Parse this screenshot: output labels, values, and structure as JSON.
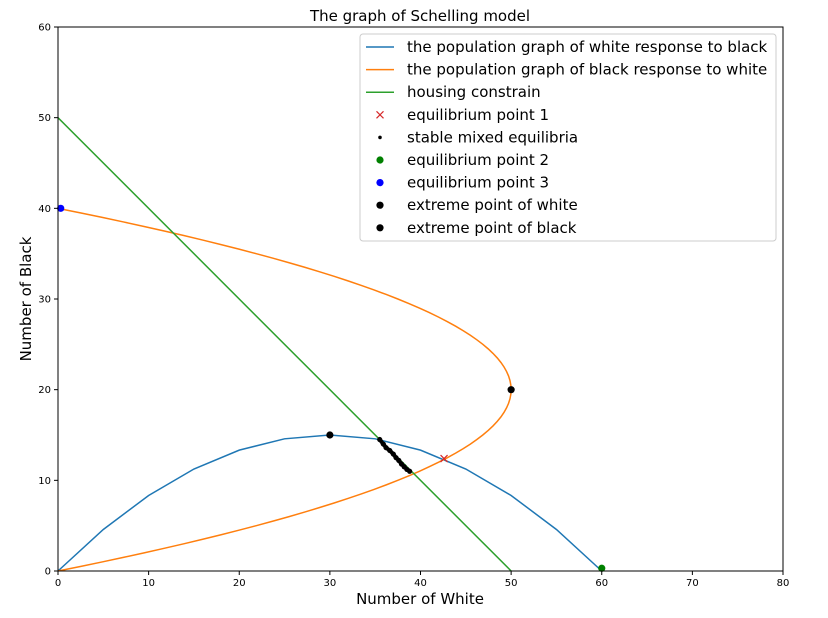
{
  "chart_data": {
    "type": "line",
    "title": "The graph of Schelling model",
    "xlabel": "Number of White",
    "ylabel": "Number of Black",
    "xlim": [
      0,
      80
    ],
    "ylim": [
      0,
      60
    ],
    "xticks": [
      0,
      10,
      20,
      30,
      40,
      50,
      60,
      70,
      80
    ],
    "yticks": [
      0,
      10,
      20,
      30,
      40,
      50,
      60
    ],
    "grid": false,
    "legend_position": "top-right",
    "series": [
      {
        "name": "the population graph of white response to black",
        "kind": "line",
        "color": "#1f77b4",
        "points": [
          [
            0,
            0
          ],
          [
            5,
            4.58
          ],
          [
            10,
            8.33
          ],
          [
            15,
            11.25
          ],
          [
            20,
            13.33
          ],
          [
            25,
            14.58
          ],
          [
            30,
            15
          ],
          [
            35,
            14.58
          ],
          [
            40,
            13.33
          ],
          [
            45,
            11.25
          ],
          [
            50,
            8.33
          ],
          [
            55,
            4.58
          ],
          [
            60,
            0
          ]
        ]
      },
      {
        "name": "the population graph of black response to white",
        "kind": "line",
        "color": "#ff7f0e",
        "points": [
          [
            0,
            0
          ],
          [
            7.5,
            2
          ],
          [
            14,
            4
          ],
          [
            19.5,
            6
          ],
          [
            24,
            8
          ],
          [
            28.8,
            10
          ],
          [
            33.5,
            12
          ],
          [
            37.8,
            14
          ],
          [
            41.5,
            16
          ],
          [
            44.8,
            18
          ],
          [
            48,
            20
          ],
          [
            50,
            22
          ],
          [
            50,
            24
          ],
          [
            50,
            26
          ],
          [
            48,
            28
          ],
          [
            44.8,
            30
          ],
          [
            41.5,
            32
          ],
          [
            37.8,
            34
          ],
          [
            33.5,
            36
          ],
          [
            28.8,
            38
          ],
          [
            0,
            40
          ]
        ]
      },
      {
        "name": "housing constrain",
        "kind": "line",
        "color": "#2ca02c",
        "points": [
          [
            0,
            50
          ],
          [
            50,
            0
          ]
        ]
      },
      {
        "name": "equilibrium point 1",
        "kind": "marker-x",
        "color": "#d62728",
        "points": [
          [
            42.6,
            12.4
          ]
        ]
      },
      {
        "name": "stable mixed equilibria",
        "kind": "small-dots",
        "color": "#000000",
        "points": [
          [
            35.5,
            14.5
          ],
          [
            35.9,
            14.0
          ],
          [
            36.2,
            13.6
          ],
          [
            36.6,
            13.3
          ],
          [
            37.0,
            12.9
          ],
          [
            37.3,
            12.5
          ],
          [
            37.6,
            12.2
          ],
          [
            37.9,
            11.8
          ],
          [
            38.2,
            11.5
          ],
          [
            38.5,
            11.2
          ],
          [
            38.8,
            11.0
          ]
        ]
      },
      {
        "name": "equilibrium point 2",
        "kind": "dot",
        "color": "#008000",
        "points": [
          [
            60,
            0.3
          ]
        ]
      },
      {
        "name": "equilibrium point 3",
        "kind": "dot",
        "color": "#0000ff",
        "points": [
          [
            0.3,
            40
          ]
        ]
      },
      {
        "name": "extreme point of white",
        "kind": "dot",
        "color": "#000000",
        "points": [
          [
            30,
            15
          ]
        ]
      },
      {
        "name": "extreme point of black",
        "kind": "dot",
        "color": "#000000",
        "points": [
          [
            50,
            20
          ]
        ]
      }
    ]
  }
}
